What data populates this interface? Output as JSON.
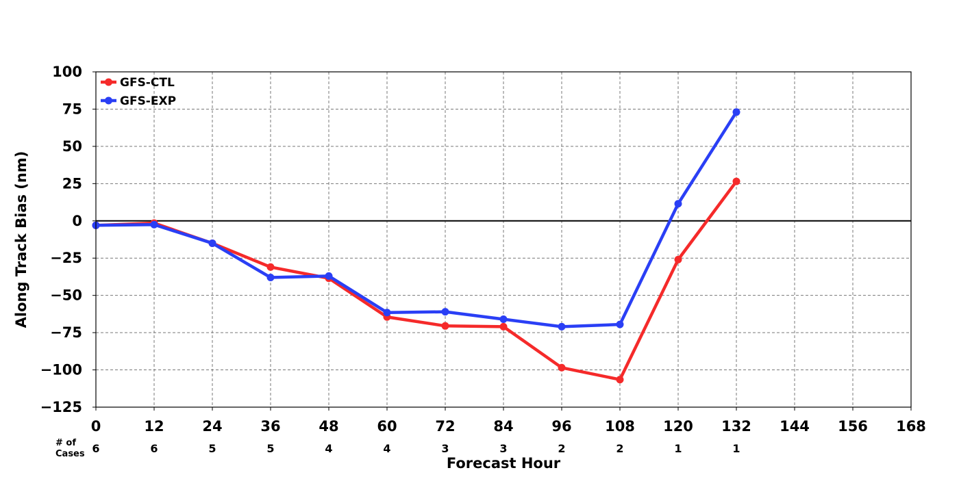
{
  "chart_data": {
    "type": "line",
    "xlabel": "Forecast Hour",
    "ylabel": "Along Track Bias (nm)",
    "xlim": [
      0,
      168
    ],
    "ylim": [
      -125,
      100
    ],
    "x_ticks": [
      0,
      12,
      24,
      36,
      48,
      60,
      72,
      84,
      96,
      108,
      120,
      132,
      144,
      156,
      168
    ],
    "y_ticks": [
      100,
      75,
      50,
      25,
      0,
      -25,
      -50,
      -75,
      -100,
      -125
    ],
    "y_tick_labels": [
      "100",
      "75",
      "50",
      "25",
      "0",
      "−25",
      "−50",
      "−75",
      "−100",
      "−125"
    ],
    "grid": true,
    "zero_line": true,
    "legend_position": "top-left",
    "cases_label_line1": "# of",
    "cases_label_line2": "Cases",
    "num_cases": [
      {
        "x": 0,
        "n": "6"
      },
      {
        "x": 12,
        "n": "6"
      },
      {
        "x": 24,
        "n": "5"
      },
      {
        "x": 36,
        "n": "5"
      },
      {
        "x": 48,
        "n": "4"
      },
      {
        "x": 60,
        "n": "4"
      },
      {
        "x": 72,
        "n": "3"
      },
      {
        "x": 84,
        "n": "3"
      },
      {
        "x": 96,
        "n": "2"
      },
      {
        "x": 108,
        "n": "2"
      },
      {
        "x": 120,
        "n": "1"
      },
      {
        "x": 132,
        "n": "1"
      }
    ],
    "series": [
      {
        "name": "GFS-CTL",
        "color": "#f52a2a",
        "x": [
          0,
          12,
          24,
          36,
          48,
          60,
          72,
          84,
          96,
          108,
          120,
          132
        ],
        "values": [
          -3,
          -1.5,
          -15,
          -31,
          -38.5,
          -64.5,
          -70.5,
          -71,
          -98.5,
          -106.5,
          -26,
          26.5
        ]
      },
      {
        "name": "GFS-EXP",
        "color": "#2a3ff5",
        "x": [
          0,
          12,
          24,
          36,
          48,
          60,
          72,
          84,
          96,
          108,
          120,
          132
        ],
        "values": [
          -3,
          -2.5,
          -15,
          -38,
          -37,
          -61.5,
          -61,
          -66,
          -71,
          -69.5,
          11.5,
          73
        ]
      }
    ]
  }
}
